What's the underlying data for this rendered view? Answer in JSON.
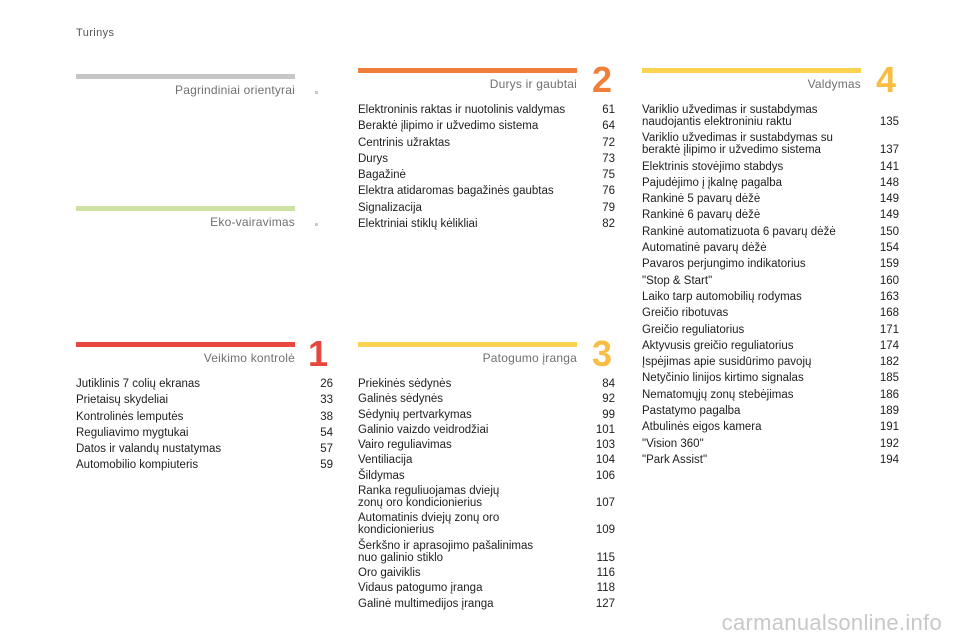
{
  "header": {
    "title": "Turinys"
  },
  "colors": {
    "gray": "#c6c6c6",
    "green": "#cfe2a5",
    "red": "#e8473e",
    "orange": "#f07f3c",
    "yellow": "#fdd24e",
    "yellow_num": "#f9bd43"
  },
  "sections": {
    "pagrindiniai": {
      "title": "Pagrindiniai orientyrai"
    },
    "eko": {
      "title": "Eko-vairavimas"
    },
    "veikimo": {
      "title": "Veikimo kontrolė",
      "number": "1",
      "items": [
        {
          "text": "Jutiklinis 7 colių ekranas",
          "page": "26"
        },
        {
          "text": "Prietaisų skydeliai",
          "page": "33"
        },
        {
          "text": "Kontrolinės lemputės",
          "page": "38"
        },
        {
          "text": "Reguliavimo mygtukai",
          "page": "54"
        },
        {
          "text": "Datos ir valandų nustatymas",
          "page": "57"
        },
        {
          "text": "Automobilio kompiuteris",
          "page": "59"
        }
      ]
    },
    "durys": {
      "title": "Durys ir gaubtai",
      "number": "2",
      "items": [
        {
          "text": "Elektroninis raktas ir nuotolinis valdymas",
          "page": "61"
        },
        {
          "text": "Beraktė įlipimo ir užvedimo sistema",
          "page": "64"
        },
        {
          "text": "Centrinis užraktas",
          "page": "72"
        },
        {
          "text": "Durys",
          "page": "73"
        },
        {
          "text": "Bagažinė",
          "page": "75"
        },
        {
          "text": "Elektra atidaromas bagažinės gaubtas",
          "page": "76"
        },
        {
          "text": "Signalizacija",
          "page": "79"
        },
        {
          "text": "Elektriniai stiklų kėlikliai",
          "page": "82"
        }
      ]
    },
    "patogumo": {
      "title": "Patogumo įranga",
      "number": "3",
      "items": [
        {
          "text": "Priekinės sėdynės",
          "page": "84"
        },
        {
          "text": "Galinės sėdynės",
          "page": "92"
        },
        {
          "text": "Sėdynių pertvarkymas",
          "page": "99"
        },
        {
          "text": "Galinio vaizdo veidrodžiai",
          "page": "101"
        },
        {
          "text": "Vairo reguliavimas",
          "page": "103"
        },
        {
          "text": "Ventiliacija",
          "page": "104"
        },
        {
          "text": "Šildymas",
          "page": "106"
        },
        {
          "text": "Ranka reguliuojamas dviejų zonų oro kondicionierius",
          "page": "107"
        },
        {
          "text": "Automatinis dviejų zonų oro kondicionierius",
          "page": "109"
        },
        {
          "text": "Šerkšno ir aprasojimo pašalinimas nuo galinio stiklo",
          "page": "115"
        },
        {
          "text": "Oro gaiviklis",
          "page": "116"
        },
        {
          "text": "Vidaus patogumo įranga",
          "page": "118"
        },
        {
          "text": "Galinė multimedijos įranga",
          "page": "127"
        }
      ]
    },
    "valdymas": {
      "title": "Valdymas",
      "number": "4",
      "items": [
        {
          "text": "Variklio užvedimas ir sustabdymas naudojantis elektroniniu raktu",
          "page": "135"
        },
        {
          "text": "Variklio užvedimas ir sustabdymas su beraktė įlipimo ir užvedimo sistema",
          "page": "137"
        },
        {
          "text": "Elektrinis stovėjimo stabdys",
          "page": "141"
        },
        {
          "text": "Pajudėjimo į įkalnę pagalba",
          "page": "148"
        },
        {
          "text": "Rankinė 5 pavarų dėžė",
          "page": "149"
        },
        {
          "text": "Rankinė 6 pavarų dėžė",
          "page": "149"
        },
        {
          "text": "Rankinė automatizuota 6 pavarų dėžė",
          "page": "150"
        },
        {
          "text": "Automatinė pavarų dėžė",
          "page": "154"
        },
        {
          "text": "Pavaros perjungimo indikatorius",
          "page": "159"
        },
        {
          "text": "\"Stop & Start\"",
          "page": "160"
        },
        {
          "text": "Laiko tarp automobilių rodymas",
          "page": "163"
        },
        {
          "text": "Greičio ribotuvas",
          "page": "168"
        },
        {
          "text": "Greičio reguliatorius",
          "page": "171"
        },
        {
          "text": "Aktyvusis greičio reguliatorius",
          "page": "174"
        },
        {
          "text": "Įspėjimas apie susidūrimo pavojų",
          "page": "182"
        },
        {
          "text": "Netyčinio linijos kirtimo signalas",
          "page": "185"
        },
        {
          "text": "Nematomųjų zonų stebėjimas",
          "page": "186"
        },
        {
          "text": "Pastatymo pagalba",
          "page": "189"
        },
        {
          "text": "Atbulinės eigos kamera",
          "page": "191"
        },
        {
          "text": "\"Vision 360\"",
          "page": "192"
        },
        {
          "text": "\"Park Assist\"",
          "page": "194"
        }
      ]
    }
  },
  "footer": {
    "watermark": "carmanualsonline.info"
  }
}
